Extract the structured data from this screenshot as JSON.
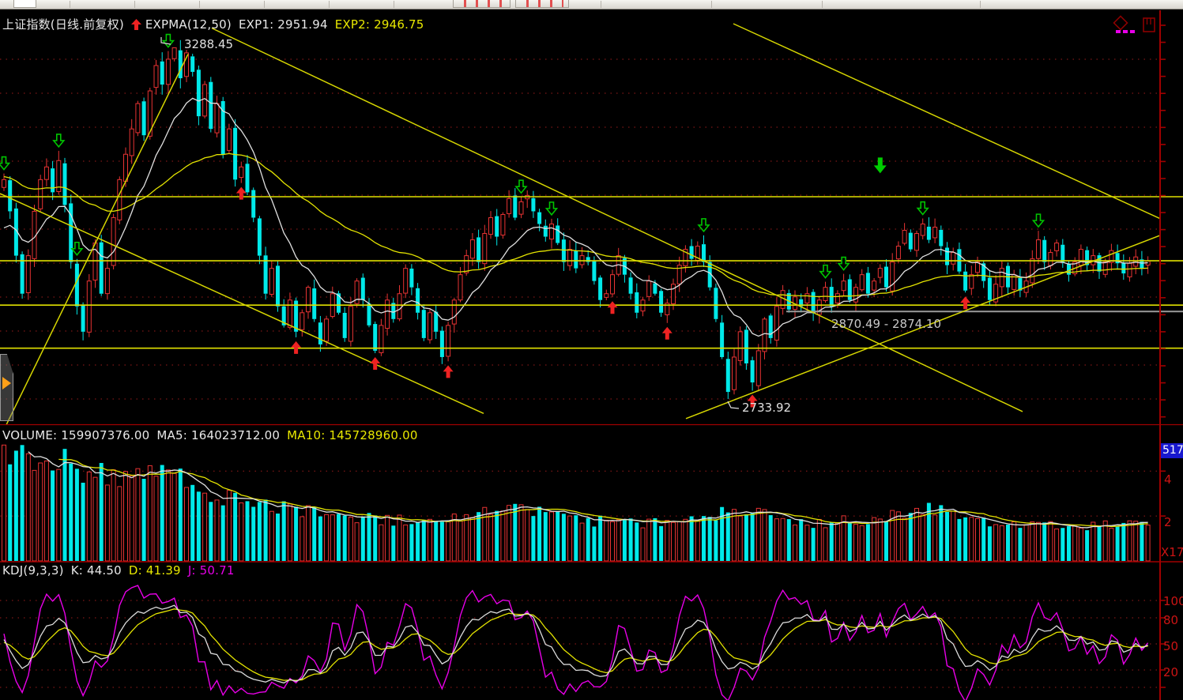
{
  "topbar": {
    "button1_label": "",
    "button2_label": ""
  },
  "main_chart": {
    "title": "上证指数(日线.前复权)",
    "indicator_label": "EXPMA(12,50)",
    "exp1_label": "EXP1: 2951.94",
    "exp2_label": "EXP2: 2946.75",
    "high_label": "3288.45",
    "low_label": "2733.92",
    "zone_label": "2870.49 - 2874.10"
  },
  "volume_pane": {
    "volume_label": "VOLUME: 159907376.00",
    "ma5_label": "MA5: 164023712.00",
    "ma10_label": "MA10: 145728960.00",
    "axis_badge": "517",
    "axis_labels": [
      "4",
      "2"
    ],
    "scale_label": "X17"
  },
  "kdj_pane": {
    "indicator_label": "KDJ(9,3,3)",
    "k_label": "K: 44.50",
    "d_label": "D: 41.39",
    "j_label": "J: 50.71",
    "axis_labels": [
      "100",
      "80",
      "50",
      "20"
    ]
  },
  "colors": {
    "up": "#e83333",
    "down": "#00e9e9",
    "exp1": "#e0e0e0",
    "exp2": "#e3e300",
    "trend": "#d6d600",
    "grid": "#9b1b1b",
    "axis": "#a00000",
    "gray_line": "#9a9a9a",
    "buy_arrow": "#ee2222",
    "sell_arrow": "#00c400",
    "sell_big": "#00cc00",
    "k_line": "#dcdcdc",
    "d_line": "#e3e300",
    "j_line": "#e800e8",
    "label_red": "#cc1414",
    "badge_blue": "#1818cf"
  },
  "chart_data": [
    {
      "type": "candlestick",
      "symbol": "上证指数",
      "period": "日线.前复权",
      "indicator": "EXPMA(12,50)",
      "exp1": 2951.94,
      "exp2": 2946.75,
      "ylim": [
        2694,
        3326
      ],
      "closes": [
        3080,
        3030,
        2960,
        2900,
        2960,
        3030,
        3080,
        3100,
        3060,
        3110,
        3040,
        2950,
        2880,
        2840,
        2920,
        2980,
        2900,
        2940,
        3020,
        3080,
        3120,
        3160,
        3200,
        3150,
        3220,
        3260,
        3230,
        3270,
        3288,
        3240,
        3280,
        3250,
        3180,
        3230,
        3160,
        3200,
        3120,
        3160,
        3080,
        3100,
        3060,
        3020,
        2960,
        2900,
        2940,
        2880,
        2850,
        2890,
        2840,
        2870,
        2910,
        2860,
        2820,
        2860,
        2900,
        2870,
        2830,
        2880,
        2920,
        2890,
        2850,
        2810,
        2850,
        2890,
        2860,
        2900,
        2940,
        2910,
        2870,
        2830,
        2870,
        2840,
        2800,
        2850,
        2890,
        2930,
        2960,
        2985,
        2950,
        2995,
        3020,
        2990,
        3025,
        3050,
        3020,
        3045,
        3055,
        3030,
        3010,
        2990,
        3010,
        2980,
        2950,
        2970,
        2940,
        2960,
        2950,
        2920,
        2890,
        2900,
        2930,
        2960,
        2930,
        2900,
        2870,
        2890,
        2920,
        2900,
        2870,
        2885,
        2915,
        2945,
        2970,
        2955,
        2975,
        2950,
        2910,
        2860,
        2800,
        2745,
        2800,
        2840,
        2790,
        2760,
        2810,
        2860,
        2830,
        2880,
        2905,
        2875,
        2895,
        2880,
        2900,
        2870,
        2890,
        2910,
        2880,
        2900,
        2920,
        2890,
        2910,
        2930,
        2900,
        2920,
        2940,
        2910,
        2950,
        2975,
        3000,
        2970,
        2995,
        3010,
        2985,
        3005,
        2975,
        2945,
        2965,
        2935,
        2905,
        2930,
        2950,
        2920,
        2890,
        2915,
        2940,
        2910,
        2930,
        2905,
        2920,
        2955,
        2985,
        2950,
        2965,
        2980,
        2950,
        2930,
        2950,
        2970,
        2945,
        2960,
        2935,
        2950,
        2968,
        2948,
        2932,
        2948,
        2958,
        2940,
        2952
      ],
      "marked_high": {
        "index": 28,
        "price": 3288.45
      },
      "marked_low": {
        "index": 119,
        "price": 2733.92
      },
      "support_zone": [
        2870.49,
        2874.1
      ],
      "horizontal_lines": [
        3053,
        2952,
        2882,
        2814
      ],
      "gray_line": {
        "price": 2872,
        "x_start": 995
      },
      "trend_lines": [
        [
          4,
          2683,
          238,
          3278
        ],
        [
          0,
          3058,
          612,
          2711
        ],
        [
          268,
          3319,
          1294,
          2714
        ],
        [
          868,
          2703,
          1497,
          3006
        ],
        [
          928,
          3326,
          1497,
          3002
        ]
      ],
      "signals": {
        "buy_indices": [
          39,
          48,
          61,
          73,
          100,
          109,
          123,
          158
        ],
        "sell_indices": [
          0,
          9,
          12,
          27,
          85,
          90,
          115,
          135,
          138,
          151,
          170
        ],
        "sell_big": [
          {
            "index": 144,
            "price": 3090
          }
        ]
      },
      "ema_periods": [
        12,
        50
      ],
      "ema_seeds": [
        2990,
        3085
      ]
    },
    {
      "type": "bar",
      "name": "VOLUME",
      "latest": 159907376.0,
      "ma5": 164023712.0,
      "ma10": 145728960.0,
      "axis_max": 517000000,
      "gridline_values": [
        400000000,
        200000000
      ],
      "anchors": [
        [
          0,
          490000000
        ],
        [
          2,
          515000000
        ],
        [
          5,
          440000000
        ],
        [
          8,
          470000000
        ],
        [
          12,
          410000000
        ],
        [
          16,
          380000000
        ],
        [
          20,
          350000000
        ],
        [
          24,
          450000000
        ],
        [
          28,
          390000000
        ],
        [
          33,
          300000000
        ],
        [
          38,
          270000000
        ],
        [
          45,
          240000000
        ],
        [
          52,
          210000000
        ],
        [
          60,
          190000000
        ],
        [
          68,
          180000000
        ],
        [
          76,
          210000000
        ],
        [
          84,
          230000000
        ],
        [
          90,
          210000000
        ],
        [
          97,
          180000000
        ],
        [
          105,
          170000000
        ],
        [
          112,
          180000000
        ],
        [
          119,
          220000000
        ],
        [
          126,
          200000000
        ],
        [
          133,
          170000000
        ],
        [
          140,
          180000000
        ],
        [
          147,
          210000000
        ],
        [
          152,
          230000000
        ],
        [
          158,
          190000000
        ],
        [
          164,
          170000000
        ],
        [
          170,
          160000000
        ],
        [
          176,
          155000000
        ],
        [
          182,
          170000000
        ],
        [
          188,
          159907376
        ]
      ]
    },
    {
      "type": "line",
      "name": "KDJ",
      "params": [
        9,
        3,
        3
      ],
      "k": 44.5,
      "d": 41.39,
      "j": 50.71,
      "gridline_values": [
        100,
        80,
        50,
        20,
        0
      ]
    }
  ]
}
